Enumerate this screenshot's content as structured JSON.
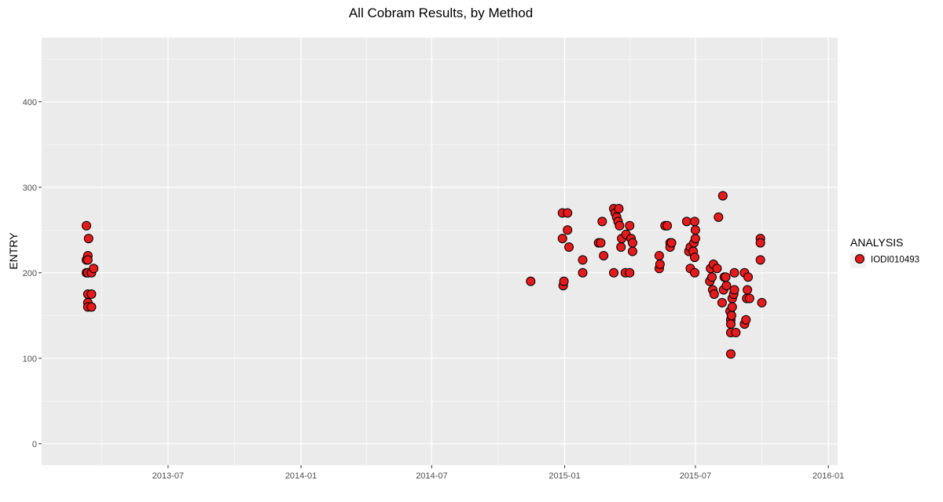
{
  "chart_data": {
    "type": "scatter",
    "title": "All Cobram Results, by Method",
    "xlabel": "",
    "ylabel": "ENTRY",
    "x_axis_type": "date",
    "xlim": [
      "2013-01-07",
      "2016-01-14"
    ],
    "ylim": [
      -25,
      475
    ],
    "x_ticks": [
      "2013-07",
      "2014-01",
      "2014-07",
      "2015-01",
      "2015-07",
      "2016-01"
    ],
    "y_ticks": [
      0,
      100,
      200,
      300,
      400
    ],
    "grid": true,
    "legend": {
      "title": "ANALYSIS",
      "position": "right"
    },
    "colors": {
      "panel": "#ebebeb",
      "grid": "#ffffff",
      "point_fill": "#e41a1c",
      "point_stroke": "#000000"
    },
    "series": [
      {
        "name": "IODI010493",
        "points": [
          {
            "x": "2013-03-10",
            "y": 255
          },
          {
            "x": "2013-03-10",
            "y": 215
          },
          {
            "x": "2013-03-10",
            "y": 200
          },
          {
            "x": "2013-03-12",
            "y": 220
          },
          {
            "x": "2013-03-12",
            "y": 215
          },
          {
            "x": "2013-03-12",
            "y": 200
          },
          {
            "x": "2013-03-13",
            "y": 240
          },
          {
            "x": "2013-03-12",
            "y": 175
          },
          {
            "x": "2013-03-12",
            "y": 165
          },
          {
            "x": "2013-03-12",
            "y": 160
          },
          {
            "x": "2013-03-17",
            "y": 200
          },
          {
            "x": "2013-03-17",
            "y": 175
          },
          {
            "x": "2013-03-17",
            "y": 160
          },
          {
            "x": "2013-03-20",
            "y": 205
          },
          {
            "x": "2014-11-15",
            "y": 190
          },
          {
            "x": "2014-12-29",
            "y": 270
          },
          {
            "x": "2014-12-29",
            "y": 240
          },
          {
            "x": "2014-12-30",
            "y": 185
          },
          {
            "x": "2014-12-31",
            "y": 190
          },
          {
            "x": "2015-01-05",
            "y": 270
          },
          {
            "x": "2015-01-05",
            "y": 250
          },
          {
            "x": "2015-01-07",
            "y": 230
          },
          {
            "x": "2015-01-26",
            "y": 215
          },
          {
            "x": "2015-01-26",
            "y": 200
          },
          {
            "x": "2015-02-17",
            "y": 235
          },
          {
            "x": "2015-02-20",
            "y": 235
          },
          {
            "x": "2015-02-22",
            "y": 260
          },
          {
            "x": "2015-02-24",
            "y": 220
          },
          {
            "x": "2015-03-10",
            "y": 200
          },
          {
            "x": "2015-03-10",
            "y": 275
          },
          {
            "x": "2015-03-12",
            "y": 270
          },
          {
            "x": "2015-03-14",
            "y": 265
          },
          {
            "x": "2015-03-16",
            "y": 260
          },
          {
            "x": "2015-03-17",
            "y": 275
          },
          {
            "x": "2015-03-18",
            "y": 255
          },
          {
            "x": "2015-03-20",
            "y": 230
          },
          {
            "x": "2015-03-21",
            "y": 240
          },
          {
            "x": "2015-03-26",
            "y": 200
          },
          {
            "x": "2015-03-27",
            "y": 245
          },
          {
            "x": "2015-04-01",
            "y": 200
          },
          {
            "x": "2015-04-01",
            "y": 255
          },
          {
            "x": "2015-04-03",
            "y": 240
          },
          {
            "x": "2015-04-05",
            "y": 235
          },
          {
            "x": "2015-04-05",
            "y": 225
          },
          {
            "x": "2015-05-12",
            "y": 220
          },
          {
            "x": "2015-05-12",
            "y": 205
          },
          {
            "x": "2015-05-13",
            "y": 210
          },
          {
            "x": "2015-05-20",
            "y": 255
          },
          {
            "x": "2015-05-23",
            "y": 255
          },
          {
            "x": "2015-05-27",
            "y": 235
          },
          {
            "x": "2015-05-27",
            "y": 230
          },
          {
            "x": "2015-05-29",
            "y": 235
          },
          {
            "x": "2015-06-19",
            "y": 260
          },
          {
            "x": "2015-06-22",
            "y": 225
          },
          {
            "x": "2015-06-24",
            "y": 230
          },
          {
            "x": "2015-06-24",
            "y": 205
          },
          {
            "x": "2015-06-28",
            "y": 225
          },
          {
            "x": "2015-06-29",
            "y": 235
          },
          {
            "x": "2015-06-30",
            "y": 200
          },
          {
            "x": "2015-06-30",
            "y": 218
          },
          {
            "x": "2015-06-30",
            "y": 260
          },
          {
            "x": "2015-07-01",
            "y": 240
          },
          {
            "x": "2015-07-01",
            "y": 250
          },
          {
            "x": "2015-07-21",
            "y": 190
          },
          {
            "x": "2015-07-22",
            "y": 205
          },
          {
            "x": "2015-07-24",
            "y": 195
          },
          {
            "x": "2015-07-25",
            "y": 180
          },
          {
            "x": "2015-07-26",
            "y": 210
          },
          {
            "x": "2015-07-27",
            "y": 175
          },
          {
            "x": "2015-07-31",
            "y": 205
          },
          {
            "x": "2015-08-02",
            "y": 265
          },
          {
            "x": "2015-08-07",
            "y": 165
          },
          {
            "x": "2015-08-08",
            "y": 290
          },
          {
            "x": "2015-08-09",
            "y": 180
          },
          {
            "x": "2015-08-10",
            "y": 195
          },
          {
            "x": "2015-08-12",
            "y": 195
          },
          {
            "x": "2015-08-13",
            "y": 185
          },
          {
            "x": "2015-08-18",
            "y": 155
          },
          {
            "x": "2015-08-19",
            "y": 145
          },
          {
            "x": "2015-08-19",
            "y": 140
          },
          {
            "x": "2015-08-19",
            "y": 130
          },
          {
            "x": "2015-08-19",
            "y": 105
          },
          {
            "x": "2015-08-20",
            "y": 150
          },
          {
            "x": "2015-08-21",
            "y": 170
          },
          {
            "x": "2015-08-21",
            "y": 160
          },
          {
            "x": "2015-08-23",
            "y": 175
          },
          {
            "x": "2015-08-24",
            "y": 180
          },
          {
            "x": "2015-08-24",
            "y": 200
          },
          {
            "x": "2015-08-26",
            "y": 130
          },
          {
            "x": "2015-09-07",
            "y": 200
          },
          {
            "x": "2015-09-07",
            "y": 140
          },
          {
            "x": "2015-09-09",
            "y": 145
          },
          {
            "x": "2015-09-10",
            "y": 170
          },
          {
            "x": "2015-09-11",
            "y": 180
          },
          {
            "x": "2015-09-12",
            "y": 195
          },
          {
            "x": "2015-09-14",
            "y": 170
          },
          {
            "x": "2015-09-29",
            "y": 240
          },
          {
            "x": "2015-09-29",
            "y": 235
          },
          {
            "x": "2015-09-29",
            "y": 215
          },
          {
            "x": "2015-10-01",
            "y": 165
          }
        ]
      }
    ]
  }
}
